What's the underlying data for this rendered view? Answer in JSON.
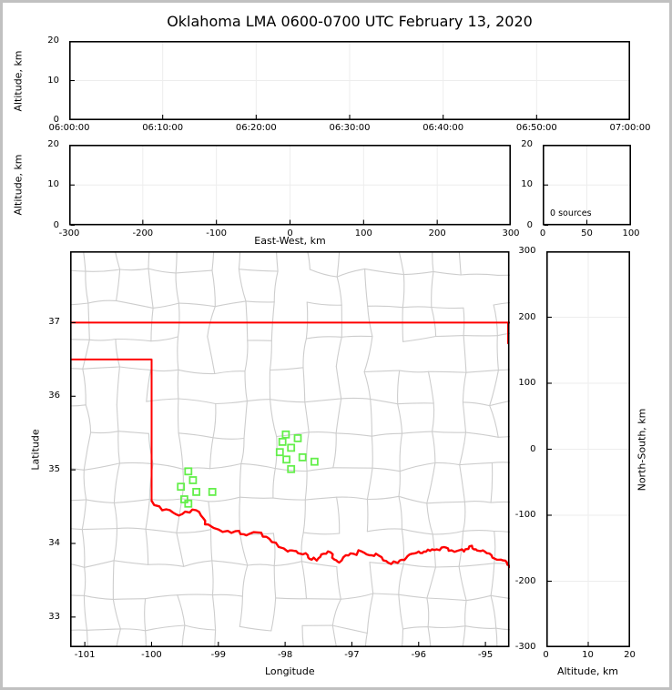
{
  "title": "Oklahoma LMA 0600-0700 UTC February 13, 2020",
  "colors": {
    "state_border": "#ff0000",
    "county_line": "#cdcdcd",
    "station_marker": "#64ef4b",
    "grid_line": "#ededed",
    "axis": "#000000",
    "frame": "#c1c1c1"
  },
  "panels": {
    "time_height": {
      "ylabel": "Altitude, km"
    },
    "ew_height": {
      "ylabel": "Altitude, km",
      "xlabel": "East-West, km"
    },
    "histogram": {
      "annotation": "0 sources"
    },
    "map": {
      "xlabel": "Longitude",
      "ylabel": "Latitude"
    },
    "ns_height": {
      "xlabel": "Altitude, km",
      "ylabel": "North-South, km"
    }
  },
  "chart_data": [
    {
      "id": "altitude_vs_time",
      "type": "scatter",
      "ylabel": "Altitude, km",
      "x_type": "time",
      "xtick_labels": [
        "06:00:00",
        "06:10:00",
        "06:20:00",
        "06:30:00",
        "06:40:00",
        "06:50:00",
        "07:00:00"
      ],
      "ylim": [
        0,
        20
      ],
      "ytick_values": [
        0,
        10,
        20
      ],
      "ytick_labels": [
        "0",
        "10",
        "20"
      ],
      "points": []
    },
    {
      "id": "altitude_vs_eastwest",
      "type": "scatter",
      "xlabel": "East-West, km",
      "ylabel": "Altitude, km",
      "xlim": [
        -300,
        300
      ],
      "xtick_values": [
        -300,
        -200,
        -100,
        0,
        100,
        200,
        300
      ],
      "xtick_labels": [
        "-300",
        "-200",
        "-100",
        "0",
        "100",
        "200",
        "300"
      ],
      "ylim": [
        0,
        20
      ],
      "ytick_values": [
        0,
        10,
        20
      ],
      "ytick_labels": [
        "0",
        "10",
        "20"
      ],
      "points": []
    },
    {
      "id": "source_count_histogram",
      "type": "scatter",
      "annotation": "0 sources",
      "xlim": [
        0,
        100
      ],
      "xtick_values": [
        0,
        50,
        100
      ],
      "xtick_labels": [
        "0",
        "50",
        "100"
      ],
      "ylim": [
        0,
        20
      ],
      "ytick_values": [
        0,
        10,
        20
      ],
      "ytick_labels": [
        "0",
        "10",
        "20"
      ],
      "points": []
    },
    {
      "id": "plan_view_map",
      "type": "scatter",
      "xlabel": "Longitude",
      "ylabel": "Latitude",
      "xlim": [
        -101.22,
        -94.64
      ],
      "ylim": [
        32.59,
        37.97
      ],
      "xtick_values": [
        -101,
        -100,
        -99,
        -98,
        -97,
        -96,
        -95
      ],
      "xtick_labels": [
        "-101",
        "-100",
        "-99",
        "-98",
        "-97",
        "-96",
        "-95"
      ],
      "ytick_values": [
        37,
        36,
        35,
        34,
        33
      ],
      "ytick_labels": [
        "37",
        "36",
        "35",
        "34",
        "33"
      ],
      "stations_lon_lat": [
        [
          -97.99,
          35.48
        ],
        [
          -97.81,
          35.43
        ],
        [
          -98.04,
          35.38
        ],
        [
          -97.91,
          35.3
        ],
        [
          -98.08,
          35.24
        ],
        [
          -97.74,
          35.17
        ],
        [
          -97.98,
          35.14
        ],
        [
          -97.56,
          35.11
        ],
        [
          -97.91,
          35.01
        ],
        [
          -99.45,
          34.98
        ],
        [
          -99.38,
          34.86
        ],
        [
          -99.56,
          34.77
        ],
        [
          -99.33,
          34.7
        ],
        [
          -99.09,
          34.7
        ],
        [
          -99.51,
          34.6
        ],
        [
          -99.45,
          34.54
        ]
      ],
      "state_border_red": {
        "kansas_line": [
          [
            -101.22,
            37.0
          ],
          [
            -94.64,
            37.0
          ]
        ],
        "panhandle_line": [
          [
            -101.22,
            36.5
          ],
          [
            -100.0,
            36.5
          ],
          [
            -100.0,
            34.58
          ]
        ],
        "missouri_edge": [
          [
            -94.66,
            37.0
          ],
          [
            -94.66,
            36.72
          ]
        ],
        "red_river": [
          [
            -100.0,
            34.58
          ],
          [
            -99.84,
            34.45
          ],
          [
            -99.68,
            34.42
          ],
          [
            -99.54,
            34.4
          ],
          [
            -99.39,
            34.46
          ],
          [
            -99.26,
            34.38
          ],
          [
            -99.2,
            34.26
          ],
          [
            -99.07,
            34.21
          ],
          [
            -98.86,
            34.17
          ],
          [
            -98.69,
            34.17
          ],
          [
            -98.58,
            34.11
          ],
          [
            -98.41,
            34.15
          ],
          [
            -98.28,
            34.09
          ],
          [
            -98.14,
            34.01
          ],
          [
            -97.96,
            33.89
          ],
          [
            -97.87,
            33.9
          ],
          [
            -97.77,
            33.86
          ],
          [
            -97.66,
            33.84
          ],
          [
            -97.6,
            33.78
          ],
          [
            -97.5,
            33.8
          ],
          [
            -97.42,
            33.86
          ],
          [
            -97.32,
            33.88
          ],
          [
            -97.26,
            33.78
          ],
          [
            -97.19,
            33.74
          ],
          [
            -97.09,
            33.84
          ],
          [
            -96.98,
            33.86
          ],
          [
            -96.85,
            33.89
          ],
          [
            -96.74,
            33.84
          ],
          [
            -96.64,
            33.86
          ],
          [
            -96.53,
            33.77
          ],
          [
            -96.41,
            33.72
          ],
          [
            -96.28,
            33.77
          ],
          [
            -96.19,
            33.8
          ],
          [
            -96.1,
            33.86
          ],
          [
            -96.0,
            33.89
          ],
          [
            -95.92,
            33.89
          ],
          [
            -95.83,
            33.9
          ],
          [
            -95.73,
            33.92
          ],
          [
            -95.62,
            33.95
          ],
          [
            -95.55,
            33.9
          ],
          [
            -95.42,
            33.9
          ],
          [
            -95.32,
            33.89
          ],
          [
            -95.24,
            33.96
          ],
          [
            -95.17,
            33.92
          ],
          [
            -95.1,
            33.9
          ],
          [
            -95.01,
            33.89
          ],
          [
            -94.91,
            33.84
          ],
          [
            -94.83,
            33.78
          ],
          [
            -94.74,
            33.77
          ],
          [
            -94.67,
            33.71
          ],
          [
            -94.64,
            33.68
          ]
        ]
      }
    },
    {
      "id": "northsouth_vs_altitude",
      "type": "scatter",
      "xlabel": "Altitude, km",
      "ylabel": "North-South, km",
      "xlim": [
        0,
        20
      ],
      "xtick_values": [
        0,
        10,
        20
      ],
      "xtick_labels": [
        "0",
        "10",
        "20"
      ],
      "ylim": [
        -300,
        300
      ],
      "ytick_values": [
        300,
        200,
        100,
        0,
        -100,
        -200,
        -300
      ],
      "ytick_labels": [
        "300",
        "200",
        "100",
        "0",
        "-100",
        "-200",
        "-300"
      ],
      "points": []
    }
  ]
}
